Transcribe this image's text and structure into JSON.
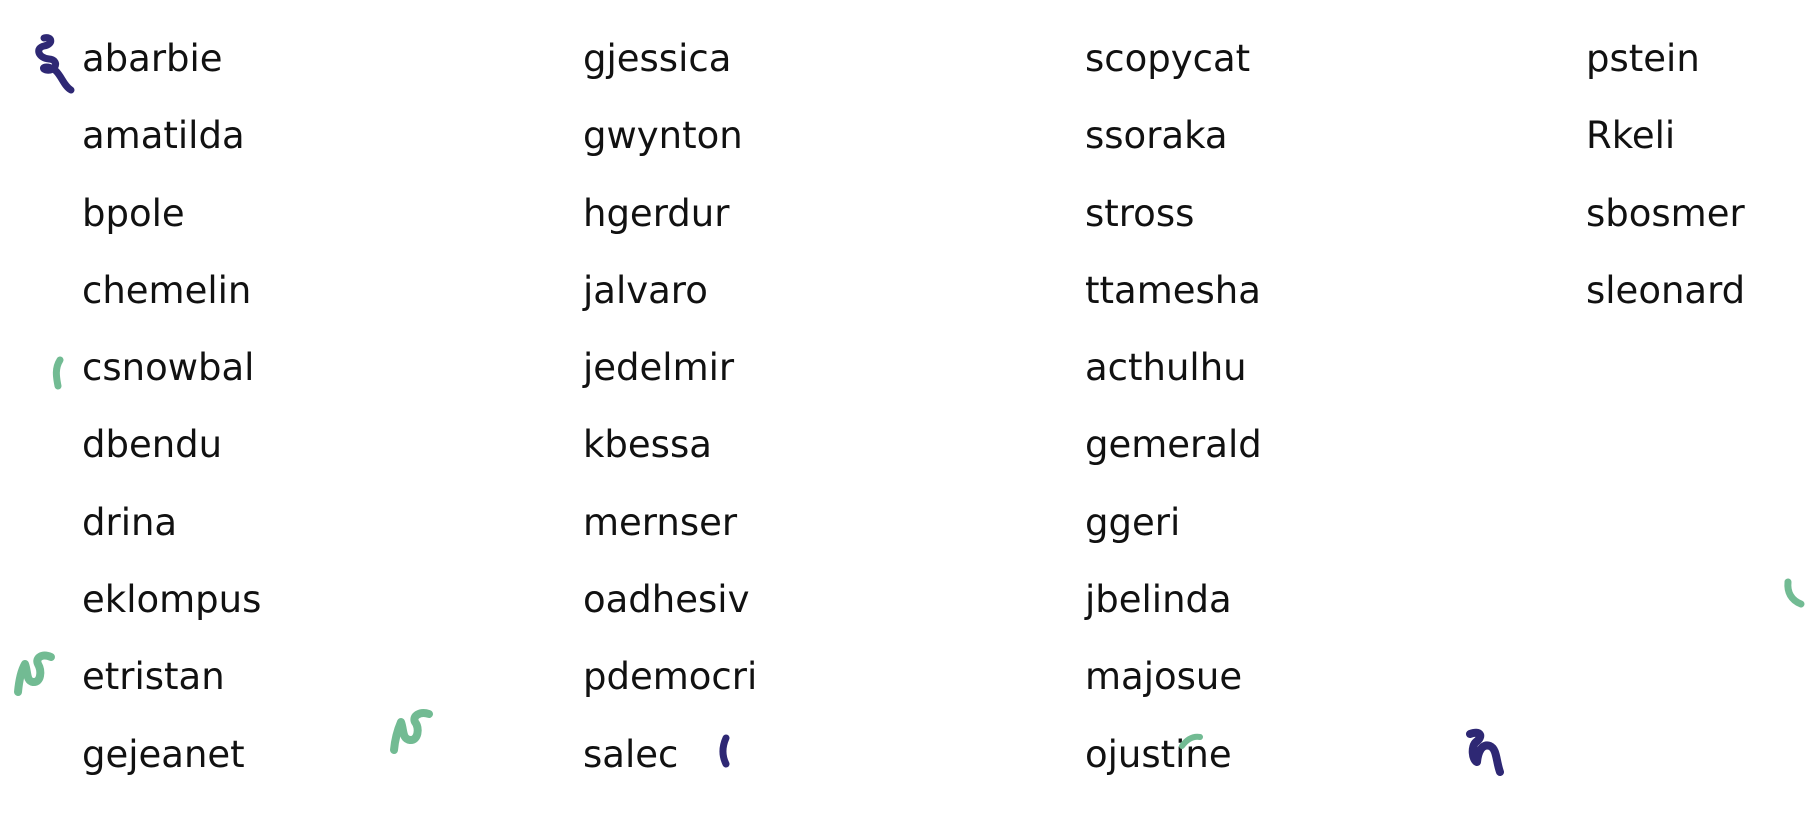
{
  "columns": [
    {
      "names": [
        "abarbie",
        "amatilda",
        "bpole",
        "chemelin",
        "csnowbal",
        "dbendu",
        "drina",
        "eklompus",
        "etristan",
        "gejeanet"
      ]
    },
    {
      "names": [
        "gjessica",
        "gwynton",
        "hgerdur",
        "jalvaro",
        "jedelmir",
        "kbessa",
        "mernser",
        "oadhesiv",
        "pdemocri",
        "salec"
      ]
    },
    {
      "names": [
        "scopycat",
        "ssoraka",
        "stross",
        "ttamesha",
        "acthulhu",
        "gemerald",
        "ggeri",
        "jbelinda",
        "majosue",
        "ojustine"
      ]
    },
    {
      "names": [
        "pstein",
        "Rkeli",
        "sbosmer",
        "sleonard"
      ]
    }
  ],
  "colors": {
    "text": "#111111",
    "background": "#ffffff",
    "marks_navy": "#2e2874",
    "marks_green": "#72bb93"
  }
}
